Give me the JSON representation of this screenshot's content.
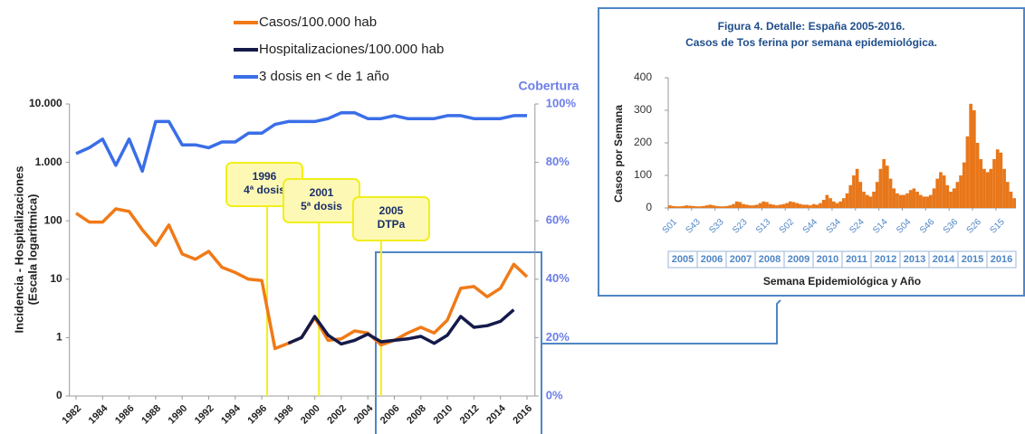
{
  "chart_data": [
    {
      "type": "line",
      "y_label_lines": [
        "Incidencia - Hospitalizaciones",
        "(Escala logarítmica)"
      ],
      "y2_label": "Cobertura",
      "log_scale": true,
      "x": [
        1982,
        1983,
        1984,
        1985,
        1986,
        1987,
        1988,
        1989,
        1990,
        1991,
        1992,
        1993,
        1994,
        1995,
        1996,
        1997,
        1998,
        1999,
        2000,
        2001,
        2002,
        2003,
        2004,
        2005,
        2006,
        2007,
        2008,
        2009,
        2010,
        2011,
        2012,
        2013,
        2014,
        2015,
        2016
      ],
      "xlim": [
        1981.5,
        2016.6
      ],
      "xticks": [
        1982,
        1984,
        1986,
        1988,
        1990,
        1992,
        1994,
        1996,
        1998,
        2000,
        2002,
        2004,
        2006,
        2008,
        2010,
        2012,
        2014,
        2016
      ],
      "ylim": [
        0.1,
        10000
      ],
      "yticks": [
        {
          "value": 0.1,
          "label": "0"
        },
        1,
        10,
        100,
        {
          "value": 1000,
          "label": "1.000"
        },
        {
          "value": 10000,
          "label": "10.000"
        }
      ],
      "y2lim": [
        0,
        100
      ],
      "y2ticks": [
        {
          "value": 0,
          "label": "0%"
        },
        {
          "value": 20,
          "label": "20%"
        },
        {
          "value": 40,
          "label": "40%"
        },
        {
          "value": 60,
          "label": "60%"
        },
        {
          "value": 80,
          "label": "80%"
        },
        {
          "value": 100,
          "label": "100%"
        }
      ],
      "series": [
        {
          "name": "Casos/100.000 hab",
          "color": "#f07a17",
          "values": [
            135,
            95,
            95,
            160,
            145,
            70,
            38,
            85,
            27,
            22,
            30,
            16,
            13,
            10,
            9.5,
            0.65,
            0.8,
            1.0,
            2.2,
            0.9,
            0.95,
            1.3,
            1.2,
            0.75,
            0.9,
            1.2,
            1.5,
            1.2,
            2,
            7,
            7.5,
            5,
            7,
            18,
            11
          ]
        },
        {
          "name": "Hospitalizaciones/100.000 hab",
          "color": "#141a4a",
          "values": [
            null,
            null,
            null,
            null,
            null,
            null,
            null,
            null,
            null,
            null,
            null,
            null,
            null,
            null,
            null,
            null,
            0.8,
            1.0,
            2.3,
            1.1,
            0.78,
            0.9,
            1.15,
            0.85,
            0.9,
            0.95,
            1.05,
            0.8,
            1.1,
            2.3,
            1.5,
            1.6,
            1.9,
            3.0,
            null
          ]
        },
        {
          "name": "3 dosis en < de 1 año",
          "color": "#3a6ee8",
          "axis": "y2",
          "values": [
            83,
            85,
            88,
            79,
            88,
            77,
            94,
            94,
            86,
            86,
            85,
            87,
            87,
            90,
            90,
            93,
            94,
            94,
            94,
            95,
            97,
            97,
            95,
            95,
            96,
            95,
            95,
            95,
            96,
            96,
            95,
            95,
            95,
            96,
            96
          ]
        }
      ],
      "annotations": [
        {
          "lines": [
            "1996",
            "4ª dosis"
          ]
        },
        {
          "lines": [
            "2001",
            "5ª dosis"
          ]
        },
        {
          "lines": [
            "2005",
            "DTPa"
          ]
        }
      ]
    },
    {
      "type": "histogram",
      "title_lines": [
        "Figura 4. Detalle: España 2005-2016.",
        "Casos de Tos ferina por semana epidemiológica."
      ],
      "y_label": "Casos por Semana",
      "x_label": "Semana Epidemiológica y Año",
      "color": "#e8771a",
      "bins": [
        0,
        6,
        12,
        18,
        24,
        30,
        36,
        42,
        48,
        54,
        60,
        66,
        72,
        78,
        84,
        90,
        96,
        102,
        108,
        114,
        120,
        126,
        132,
        138,
        144,
        150,
        156,
        162,
        168,
        174,
        180,
        186,
        192,
        198,
        204,
        210,
        216,
        222,
        228,
        234,
        240,
        246,
        252,
        258,
        264,
        270,
        276,
        282,
        288,
        294,
        300,
        306,
        312,
        318,
        324,
        330,
        336,
        342,
        348,
        354,
        360,
        366,
        372,
        378,
        384,
        390,
        396,
        402,
        408,
        414,
        420,
        426,
        432,
        438,
        444,
        450,
        456,
        462,
        468,
        474,
        480,
        486,
        492,
        498,
        504,
        510,
        516,
        522,
        528,
        534,
        540,
        546,
        552,
        558,
        564,
        570,
        576,
        582,
        588,
        594,
        600,
        606,
        612,
        618,
        624
      ],
      "values": [
        8,
        6,
        5,
        5,
        6,
        8,
        7,
        6,
        5,
        5,
        6,
        8,
        10,
        8,
        6,
        5,
        5,
        6,
        8,
        12,
        20,
        18,
        12,
        10,
        8,
        8,
        10,
        15,
        20,
        18,
        12,
        10,
        8,
        10,
        12,
        15,
        20,
        18,
        15,
        12,
        10,
        10,
        8,
        12,
        10,
        15,
        25,
        40,
        30,
        20,
        15,
        20,
        30,
        45,
        70,
        100,
        120,
        80,
        50,
        40,
        35,
        50,
        80,
        120,
        150,
        130,
        90,
        60,
        45,
        40,
        40,
        45,
        55,
        60,
        50,
        40,
        35,
        35,
        40,
        60,
        90,
        110,
        100,
        70,
        50,
        60,
        80,
        100,
        140,
        220,
        320,
        300,
        200,
        150,
        120,
        110,
        120,
        150,
        180,
        170,
        120,
        80,
        50,
        30
      ],
      "xlim": [
        0,
        624
      ],
      "xticks": [
        {
          "value": 0,
          "label": "S01"
        },
        {
          "value": 42,
          "label": "S43"
        },
        {
          "value": 84,
          "label": "S33"
        },
        {
          "value": 126,
          "label": "S23"
        },
        {
          "value": 168,
          "label": "S13"
        },
        {
          "value": 210,
          "label": "S02"
        },
        {
          "value": 252,
          "label": "S44"
        },
        {
          "value": 294,
          "label": "S34"
        },
        {
          "value": 336,
          "label": "S24"
        },
        {
          "value": 378,
          "label": "S14"
        },
        {
          "value": 420,
          "label": "S04"
        },
        {
          "value": 462,
          "label": "S46"
        },
        {
          "value": 504,
          "label": "S36"
        },
        {
          "value": 546,
          "label": "S26"
        },
        {
          "value": 588,
          "label": "S15"
        }
      ],
      "years": [
        "2005",
        "2006",
        "2007",
        "2008",
        "2009",
        "2010",
        "2011",
        "2012",
        "2013",
        "2014",
        "2015",
        "2016"
      ],
      "ylim": [
        0,
        400
      ],
      "yticks": [
        0,
        100,
        200,
        300,
        400
      ]
    }
  ]
}
